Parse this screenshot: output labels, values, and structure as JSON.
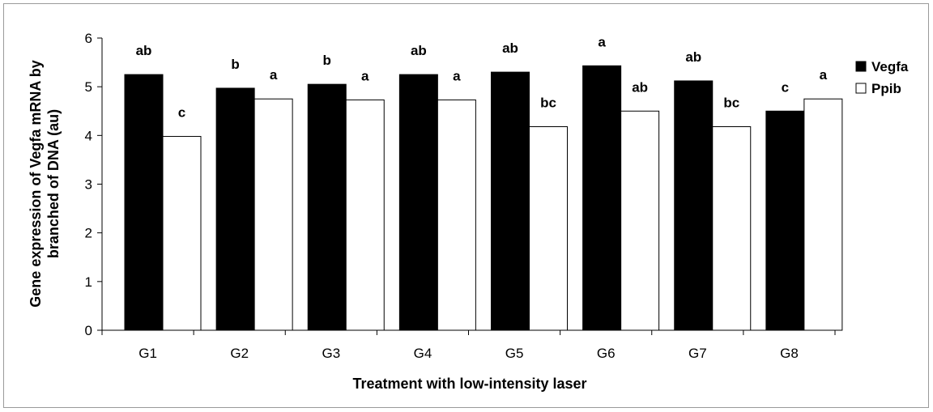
{
  "chart_data": {
    "type": "bar",
    "xlabel": "Treatment with low-intensity laser",
    "ylabel_lines": [
      "Gene expression of Vegfa mRNA by",
      "branched of DNA (au)"
    ],
    "ylim": [
      0,
      6
    ],
    "yticks": [
      "0",
      "1",
      "2",
      "3",
      "4",
      "5",
      "6"
    ],
    "categories": [
      "G1",
      "G2",
      "G3",
      "G4",
      "G5",
      "G6",
      "G7",
      "G8"
    ],
    "series": [
      {
        "name": "Vegfa",
        "color": "#000000",
        "values": [
          5.25,
          4.97,
          5.05,
          5.25,
          5.3,
          5.43,
          5.12,
          4.5
        ],
        "labels": [
          "ab",
          "b",
          "b",
          "ab",
          "ab",
          "a",
          "ab",
          "c"
        ]
      },
      {
        "name": "Ppib",
        "color": "#ffffff",
        "values": [
          3.98,
          4.75,
          4.73,
          4.73,
          4.18,
          4.5,
          4.18,
          4.75
        ],
        "labels": [
          "c",
          "a",
          "a",
          "a",
          "bc",
          "ab",
          "bc",
          "a"
        ]
      }
    ],
    "legend_position": "right",
    "grid": false
  }
}
